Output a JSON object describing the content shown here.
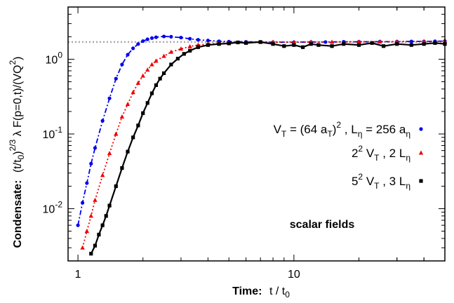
{
  "chart_data": {
    "type": "scatter",
    "title": "",
    "xlabel": "Time:",
    "xlabel_formula": "t / t0",
    "ylabel": "Condensate:",
    "ylabel_formula": "(t/t0)^(2/3) λ F(p=0,t)/(VQ^2)",
    "xscale": "log",
    "yscale": "log",
    "xlim": [
      0.9,
      50
    ],
    "ylim": [
      0.002,
      5
    ],
    "x_ticks": [
      {
        "value": 1,
        "label": "1"
      },
      {
        "value": 10,
        "label": "10"
      }
    ],
    "y_ticks": [
      {
        "value": 0.01,
        "label": "10",
        "exp": "-2"
      },
      {
        "value": 0.1,
        "label": "10",
        "exp": "-1"
      },
      {
        "value": 1,
        "label": "10",
        "exp": "0"
      }
    ],
    "reference_line": {
      "y": 1.7,
      "style": "dotted",
      "color": "#aaaaaa"
    },
    "annotation": "scalar fields",
    "legend_position": "center-right",
    "series": [
      {
        "name": "V_T = (64 a_T)^2 , L_η = 256 a_η",
        "legend": {
          "p1": "V",
          "s1": "T",
          "p2": " = (64 a",
          "s2": "T",
          "p3": ")",
          "sup3": "2",
          "p4": " ,  L",
          "s4": "η",
          "p5": " = 256 a",
          "s5": "η"
        },
        "color": "#0000ee",
        "marker": "circle",
        "line": "dash-dot",
        "x": [
          1.0,
          1.05,
          1.1,
          1.15,
          1.2,
          1.3,
          1.4,
          1.5,
          1.6,
          1.7,
          1.8,
          1.9,
          2.0,
          2.1,
          2.2,
          2.3,
          2.5,
          2.7,
          3.0,
          3.3,
          3.6,
          4.0,
          4.5,
          5.0,
          6.0,
          7.0,
          8.0,
          10.0,
          12.0,
          14.0,
          17.0,
          20.0,
          25.0,
          30.0,
          35.0,
          40.0,
          45.0,
          50.0
        ],
        "y": [
          0.006,
          0.012,
          0.022,
          0.04,
          0.065,
          0.15,
          0.3,
          0.55,
          0.85,
          1.15,
          1.4,
          1.6,
          1.75,
          1.85,
          1.92,
          1.97,
          2.02,
          2.0,
          1.95,
          1.88,
          1.82,
          1.78,
          1.74,
          1.72,
          1.71,
          1.7,
          1.69,
          1.69,
          1.7,
          1.7,
          1.71,
          1.71,
          1.72,
          1.72,
          1.73,
          1.73,
          1.74,
          1.75
        ]
      },
      {
        "name": "2^2 V_T , 2 L_η",
        "legend": {
          "p1": "2",
          "sup1": "2",
          "p2": " V",
          "s2": "T",
          "p3": "          ,          2 L",
          "s3": "η"
        },
        "color": "#ee0000",
        "marker": "triangle",
        "line": "dotted",
        "x": [
          1.05,
          1.1,
          1.15,
          1.2,
          1.3,
          1.4,
          1.5,
          1.6,
          1.7,
          1.8,
          1.9,
          2.0,
          2.1,
          2.2,
          2.3,
          2.5,
          2.7,
          3.0,
          3.3,
          3.6,
          4.0,
          4.5,
          5.0,
          6.0,
          7.0,
          8.0,
          10.0,
          12.0,
          15.0,
          20.0,
          25.0,
          30.0,
          40.0,
          50.0
        ],
        "y": [
          0.003,
          0.005,
          0.008,
          0.013,
          0.028,
          0.055,
          0.1,
          0.17,
          0.25,
          0.36,
          0.48,
          0.6,
          0.72,
          0.85,
          0.95,
          1.1,
          1.25,
          1.38,
          1.48,
          1.55,
          1.6,
          1.63,
          1.65,
          1.68,
          1.69,
          1.7,
          1.69,
          1.7,
          1.7,
          1.71,
          1.72,
          1.72,
          1.73,
          1.74
        ]
      },
      {
        "name": "5^2 V_T , 3 L_η",
        "legend": {
          "p1": "5",
          "sup1": "2",
          "p2": " V",
          "s2": "T",
          "p3": "          ,          3 L",
          "s3": "η"
        },
        "color": "#000000",
        "marker": "square",
        "line": "solid",
        "x": [
          1.15,
          1.2,
          1.25,
          1.3,
          1.35,
          1.4,
          1.5,
          1.6,
          1.7,
          1.8,
          1.9,
          2.0,
          2.1,
          2.2,
          2.3,
          2.4,
          2.5,
          2.7,
          2.9,
          3.1,
          3.3,
          3.6,
          4.0,
          4.5,
          5.0,
          5.5,
          6.0,
          7.0,
          8.0,
          9.0,
          10.0,
          11.0,
          12.0,
          13.0,
          15.0,
          17.0,
          20.0,
          23.0,
          26.0,
          30.0,
          35.0,
          40.0,
          45.0,
          50.0
        ],
        "y": [
          0.0025,
          0.0032,
          0.0045,
          0.006,
          0.008,
          0.011,
          0.02,
          0.035,
          0.058,
          0.09,
          0.13,
          0.19,
          0.26,
          0.35,
          0.45,
          0.55,
          0.65,
          0.85,
          1.02,
          1.18,
          1.3,
          1.45,
          1.55,
          1.6,
          1.63,
          1.68,
          1.65,
          1.7,
          1.6,
          1.5,
          1.55,
          1.45,
          1.6,
          1.55,
          1.5,
          1.6,
          1.55,
          1.65,
          1.5,
          1.6,
          1.55,
          1.6,
          1.65,
          1.6
        ]
      }
    ]
  }
}
